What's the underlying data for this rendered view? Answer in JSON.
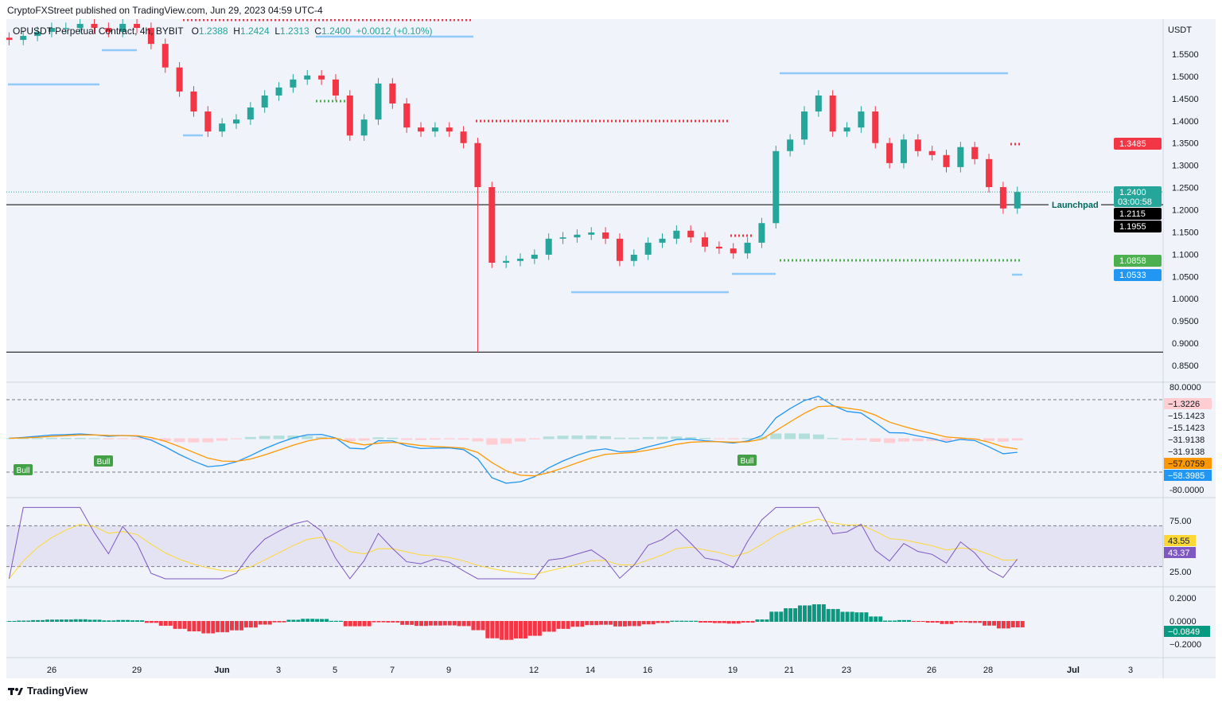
{
  "header": {
    "published": "CryptoFXStreet published on TradingView.com, Jun 29, 2023 04:59 UTC-4"
  },
  "legend": {
    "symbol": "OPUSDT Perpetual Contract, 4h, BYBIT",
    "o_label": "O",
    "o": "1.2388",
    "h_label": "H",
    "h": "1.2424",
    "l_label": "L",
    "l": "1.2313",
    "c_label": "C",
    "c": "1.2400",
    "change": "+0.0012 (+0.10%)"
  },
  "footer": {
    "brand": "TradingView",
    "logo_icon": "tradingview-logo-icon"
  },
  "colors": {
    "up": "#26a69a",
    "down": "#f23645",
    "bg": "#f0f3fa",
    "level_blue": "#90caf9",
    "rsi": "#7e57c2",
    "rsi_ma": "#fdd835",
    "macd": "#2196f3",
    "signal": "#ff9800"
  },
  "chart_data": [
    {
      "type": "candlestick",
      "title": "OPUSDT Perpetual Contract, 4h, BYBIT",
      "currency": "USDT",
      "ylim": [
        0.83,
        1.58
      ],
      "y_ticks": [
        "1.5500",
        "1.5000",
        "1.4500",
        "1.4000",
        "1.3500",
        "1.3000",
        "1.2500",
        "1.2000",
        "1.1500",
        "1.1000",
        "1.0500",
        "1.0000",
        "0.9500",
        "0.9000",
        "0.8500"
      ],
      "x_ticks": [
        "26",
        "29",
        "Jun",
        "3",
        "5",
        "7",
        "9",
        "12",
        "14",
        "16",
        "19",
        "21",
        "23",
        "26",
        "28",
        "Jul",
        "3"
      ],
      "closes_12h": [
        1.582,
        1.591,
        1.6,
        1.609,
        1.609,
        1.618,
        1.609,
        1.6,
        1.618,
        1.609,
        1.573,
        1.52,
        1.466,
        1.421,
        1.376,
        1.394,
        1.403,
        1.43,
        1.457,
        1.475,
        1.493,
        1.502,
        1.493,
        1.457,
        1.367,
        1.403,
        1.484,
        1.439,
        1.385,
        1.376,
        1.385,
        1.376,
        1.35,
        1.251,
        1.081,
        1.085,
        1.09,
        1.099,
        1.135,
        1.138,
        1.144,
        1.149,
        1.135,
        1.085,
        1.099,
        1.126,
        1.135,
        1.153,
        1.138,
        1.117,
        1.113,
        1.102,
        1.126,
        1.17,
        1.332,
        1.358,
        1.421,
        1.457,
        1.376,
        1.385,
        1.421,
        1.35,
        1.305,
        1.358,
        1.332,
        1.323,
        1.296,
        1.341,
        1.314,
        1.251,
        1.203,
        1.24
      ],
      "min_low": 0.88,
      "price_labels": [
        {
          "text": "1.3485",
          "color": "#f23645"
        },
        {
          "text": "1.2400",
          "sub": "03:00:58",
          "color": "#26a69a"
        },
        {
          "text": "1.2115",
          "color": "#000000"
        },
        {
          "text": "1.1955",
          "color": "#000000"
        },
        {
          "text": "1.0858",
          "color": "#4caf50"
        },
        {
          "text": "1.0533",
          "color": "#2196f3"
        }
      ],
      "horizontal_line_label": "Launchpad",
      "launchpad_level": 1.2115,
      "support_level": 0.88
    },
    {
      "type": "line",
      "ylim": [
        -80,
        80
      ],
      "y_ticks": [
        "80.0000",
        "-80.0000"
      ],
      "value_labels": [
        {
          "text": "−1.3226",
          "color": "#ffcdd2"
        },
        {
          "text": "−15.1423"
        },
        {
          "text": "−15.1423"
        },
        {
          "text": "−31.9138"
        },
        {
          "text": "−31.9138"
        },
        {
          "text": "−57.0759",
          "color": "#ff9800"
        },
        {
          "text": "−58.3985",
          "color": "#2196f3"
        }
      ],
      "signals": [
        "Bull",
        "Bull",
        "Bull"
      ]
    },
    {
      "type": "line",
      "ylim": [
        15,
        90
      ],
      "y_ticks": [
        "75.00",
        "25.00"
      ],
      "band": [
        30,
        70
      ],
      "value_labels": [
        {
          "text": "43.55",
          "color": "#fdd835"
        },
        {
          "text": "43.37",
          "color": "#7e57c2"
        }
      ]
    },
    {
      "type": "bar",
      "ylim": [
        -0.28,
        0.28
      ],
      "y_ticks": [
        "0.2000",
        "0.0000",
        "−0.2000"
      ],
      "value_labels": [
        {
          "text": "−0.0849",
          "color": "#089981"
        }
      ]
    }
  ]
}
